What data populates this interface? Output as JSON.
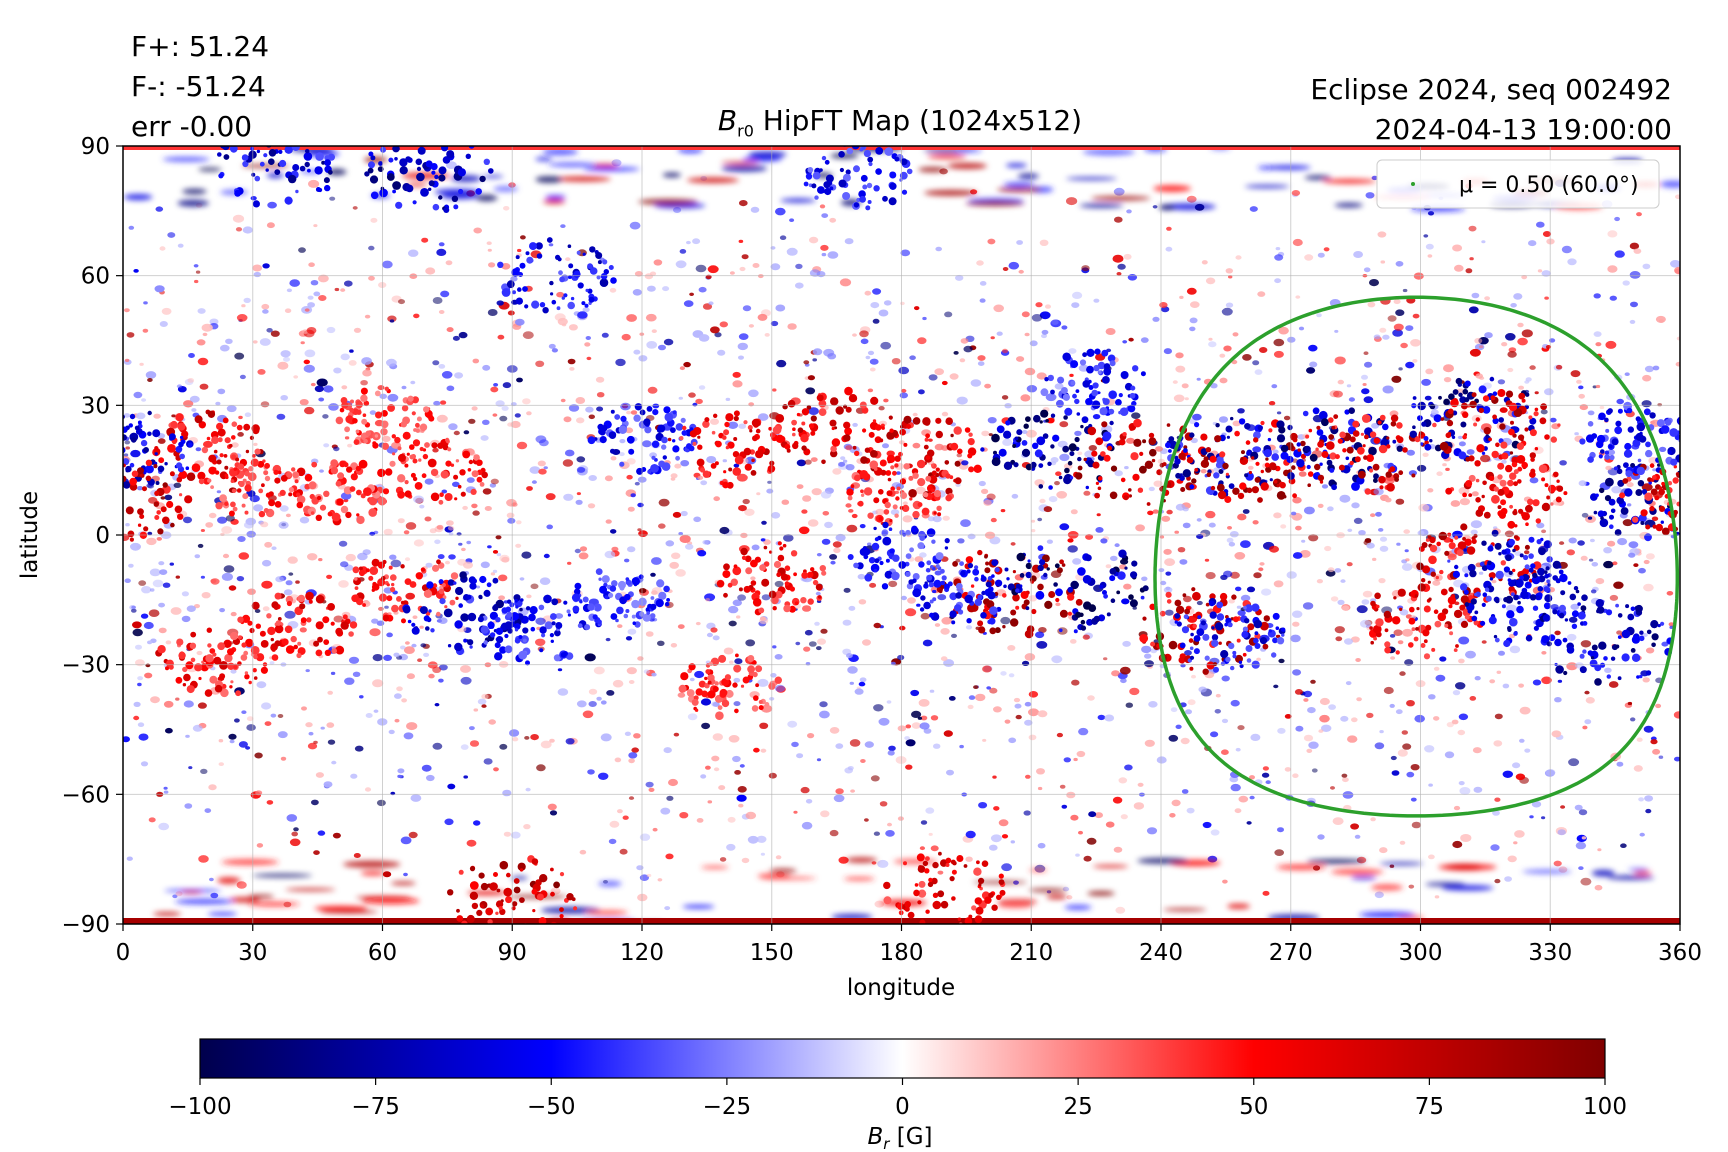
{
  "stats": {
    "f_plus": "F+: 51.24",
    "f_minus": "F-: -51.24",
    "err": "err -0.00"
  },
  "header": {
    "eclipse_line": "Eclipse 2024, seq 002492",
    "date_line": "2024-04-13 19:00:00"
  },
  "chart_data": {
    "type": "heatmap",
    "title": "B_r0 HipFT Map (1024x512)",
    "title_main": "B",
    "title_sub": "r0",
    "title_rest": " HipFT Map (1024x512)",
    "xlabel": "longitude",
    "ylabel": "latitude",
    "xlim": [
      0,
      360
    ],
    "ylim": [
      -90,
      90
    ],
    "xticks": [
      0,
      30,
      60,
      90,
      120,
      150,
      180,
      210,
      240,
      270,
      300,
      330,
      360
    ],
    "yticks": [
      -90,
      -60,
      -30,
      0,
      30,
      60,
      90
    ],
    "grid": true,
    "colormap": "seismic",
    "colorbar": {
      "label": "B_r [G]",
      "label_main": "B",
      "label_sub": "r",
      "label_rest": " [G]",
      "range": [
        -100,
        100
      ],
      "ticks": [
        -100,
        -75,
        -50,
        -25,
        0,
        25,
        50,
        75,
        100
      ]
    },
    "legend": {
      "placement": "top-right",
      "entry": "μ = 0.50 (60.0°)",
      "color": "#2ca02c"
    },
    "contour": {
      "name": "μ = 0.50 (60.0°)",
      "center_lon": 299,
      "center_lat": -5,
      "radius_deg": 60,
      "color": "#2ca02c"
    },
    "active_regions": [
      {
        "lon": 20,
        "lat": 20,
        "b": 70
      },
      {
        "lon": 30,
        "lat": 12,
        "b": 55
      },
      {
        "lon": 3,
        "lat": 20,
        "b": -70
      },
      {
        "lon": 1,
        "lat": 8,
        "b": 80
      },
      {
        "lon": 50,
        "lat": 10,
        "b": 50
      },
      {
        "lon": 72,
        "lat": 15,
        "b": 55
      },
      {
        "lon": 40,
        "lat": -22,
        "b": 65
      },
      {
        "lon": 20,
        "lat": -30,
        "b": 60
      },
      {
        "lon": 65,
        "lat": -12,
        "b": 60
      },
      {
        "lon": 80,
        "lat": -18,
        "b": -75
      },
      {
        "lon": 95,
        "lat": -22,
        "b": -60
      },
      {
        "lon": 115,
        "lat": -15,
        "b": -50
      },
      {
        "lon": 120,
        "lat": 22,
        "b": -60
      },
      {
        "lon": 140,
        "lat": 20,
        "b": 70
      },
      {
        "lon": 165,
        "lat": 25,
        "b": 75
      },
      {
        "lon": 185,
        "lat": 18,
        "b": 80
      },
      {
        "lon": 180,
        "lat": 10,
        "b": 55
      },
      {
        "lon": 150,
        "lat": -10,
        "b": 65
      },
      {
        "lon": 140,
        "lat": -35,
        "b": 50
      },
      {
        "lon": 205,
        "lat": -13,
        "b": 95
      },
      {
        "lon": 215,
        "lat": 20,
        "b": -95
      },
      {
        "lon": 220,
        "lat": -12,
        "b": -95
      },
      {
        "lon": 235,
        "lat": 17,
        "b": 90
      },
      {
        "lon": 255,
        "lat": 18,
        "b": -75
      },
      {
        "lon": 262,
        "lat": 17,
        "b": 85
      },
      {
        "lon": 250,
        "lat": -22,
        "b": 85
      },
      {
        "lon": 255,
        "lat": -23,
        "b": -65
      },
      {
        "lon": 280,
        "lat": 20,
        "b": -85
      },
      {
        "lon": 287,
        "lat": 19,
        "b": 80
      },
      {
        "lon": 312,
        "lat": 27,
        "b": -85
      },
      {
        "lon": 318,
        "lat": 24,
        "b": 80
      },
      {
        "lon": 320,
        "lat": 10,
        "b": 65
      },
      {
        "lon": 312,
        "lat": -7,
        "b": 80
      },
      {
        "lon": 320,
        "lat": -8,
        "b": -70
      },
      {
        "lon": 300,
        "lat": -20,
        "b": 70
      },
      {
        "lon": 325,
        "lat": -17,
        "b": -75
      },
      {
        "lon": 343,
        "lat": -25,
        "b": -80
      },
      {
        "lon": 355,
        "lat": 8,
        "b": -85
      },
      {
        "lon": 359,
        "lat": 8,
        "b": 75
      },
      {
        "lon": 195,
        "lat": -13,
        "b": -60
      },
      {
        "lon": 180,
        "lat": -5,
        "b": -55
      },
      {
        "lon": 60,
        "lat": 27,
        "b": 45
      },
      {
        "lon": 225,
        "lat": 35,
        "b": -55
      },
      {
        "lon": 350,
        "lat": 22,
        "b": -60
      },
      {
        "lon": 100,
        "lat": 60,
        "b": -65
      },
      {
        "lon": 35,
        "lat": 85,
        "b": -75
      },
      {
        "lon": 70,
        "lat": 84,
        "b": -80
      },
      {
        "lon": 90,
        "lat": -84,
        "b": 85
      },
      {
        "lon": 190,
        "lat": -82,
        "b": 70
      },
      {
        "lon": 170,
        "lat": 83,
        "b": -60
      }
    ]
  }
}
